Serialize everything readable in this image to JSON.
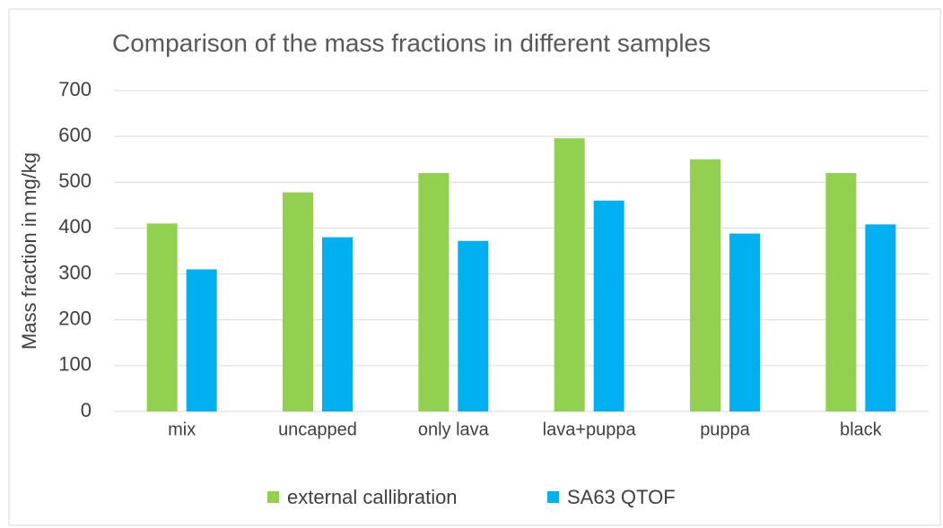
{
  "chart_data": {
    "type": "bar",
    "title": "Comparison of the mass fractions in different samples",
    "y_label": "Mass fraction in mg/kg",
    "categories": [
      "mix",
      "uncapped",
      "only lava",
      "lava+puppa",
      "puppa",
      "black"
    ],
    "series": [
      {
        "name": "external callibration",
        "color": "#92d050",
        "values": [
          410,
          478,
          520,
          596,
          550,
          520
        ]
      },
      {
        "name": "SA63 QTOF",
        "color": "#00b0f0",
        "values": [
          310,
          380,
          372,
          460,
          388,
          408
        ]
      }
    ],
    "ylim": [
      0,
      700
    ],
    "yticks": [
      0,
      100,
      200,
      300,
      400,
      500,
      600,
      700
    ],
    "grid": true,
    "legend": "bottom"
  }
}
